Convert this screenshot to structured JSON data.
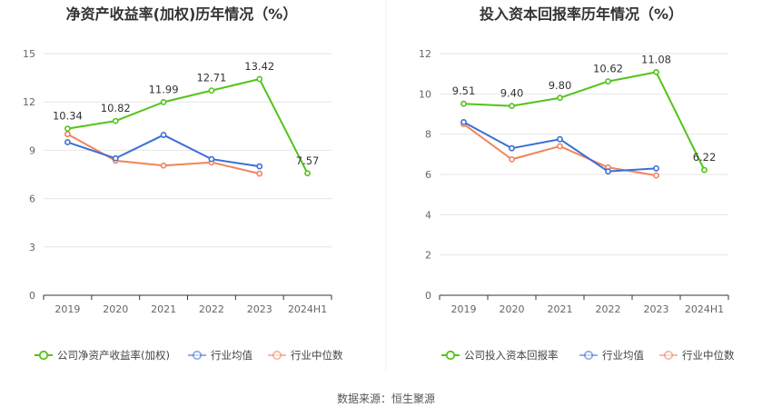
{
  "source": "数据来源：恒生聚源",
  "colors": {
    "company": "#52c41a",
    "mean": "#3b6fd6",
    "median": "#f2835a",
    "grid": "#e6e6e6",
    "axis": "#333333"
  },
  "chart_data": [
    {
      "type": "line",
      "title": "净资产收益率(加权)历年情况（%）",
      "categories": [
        "2019",
        "2020",
        "2021",
        "2022",
        "2023",
        "2024H1"
      ],
      "ylim": [
        0,
        15
      ],
      "yticks": [
        "0",
        "3",
        "6",
        "9",
        "12",
        "15"
      ],
      "grid": true,
      "legend_placement": "bottom",
      "series": [
        {
          "name": "公司净资产收益率(加权)",
          "key": "company",
          "values": [
            10.34,
            10.82,
            11.99,
            12.71,
            13.42,
            7.57
          ],
          "labels": [
            "10.34",
            "10.82",
            "11.99",
            "12.71",
            "13.42",
            "7.57"
          ]
        },
        {
          "name": "行业均值",
          "key": "mean",
          "values": [
            9.5,
            8.5,
            9.95,
            8.45,
            8.0,
            null
          ]
        },
        {
          "name": "行业中位数",
          "key": "median",
          "values": [
            10.0,
            8.35,
            8.05,
            8.25,
            7.55,
            null
          ]
        }
      ]
    },
    {
      "type": "line",
      "title": "投入资本回报率历年情况（%）",
      "categories": [
        "2019",
        "2020",
        "2021",
        "2022",
        "2023",
        "2024H1"
      ],
      "ylim": [
        0,
        12
      ],
      "yticks": [
        "0",
        "2",
        "4",
        "6",
        "8",
        "10",
        "12"
      ],
      "grid": true,
      "legend_placement": "bottom",
      "series": [
        {
          "name": "公司投入资本回报率",
          "key": "company",
          "values": [
            9.51,
            9.4,
            9.8,
            10.62,
            11.08,
            6.22
          ],
          "labels": [
            "9.51",
            "9.40",
            "9.80",
            "10.62",
            "11.08",
            "6.22"
          ]
        },
        {
          "name": "行业均值",
          "key": "mean",
          "values": [
            8.6,
            7.3,
            7.75,
            6.15,
            6.3,
            null
          ]
        },
        {
          "name": "行业中位数",
          "key": "median",
          "values": [
            8.5,
            6.75,
            7.4,
            6.35,
            5.95,
            null
          ]
        }
      ]
    }
  ]
}
